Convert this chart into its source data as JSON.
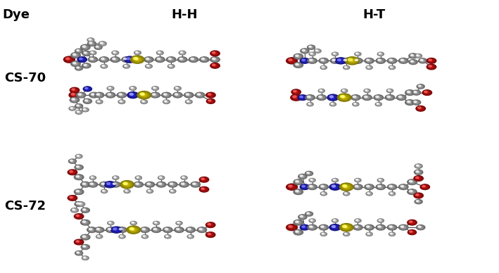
{
  "col_headers": [
    "H-H",
    "H-T"
  ],
  "row_labels": [
    "CS-70",
    "CS-72"
  ],
  "corner_label": "Dye",
  "bg_color": "#ffffff",
  "text_color": "#000000",
  "font_weight": "bold",
  "font_size": 13,
  "fig_width": 7.09,
  "fig_height": 3.88,
  "dpi": 100,
  "atom_colors": {
    "C": "#b0b0b0",
    "N": "#2020dd",
    "O": "#cc1111",
    "S": "#ddcc00",
    "H": "#d8d8d8"
  }
}
